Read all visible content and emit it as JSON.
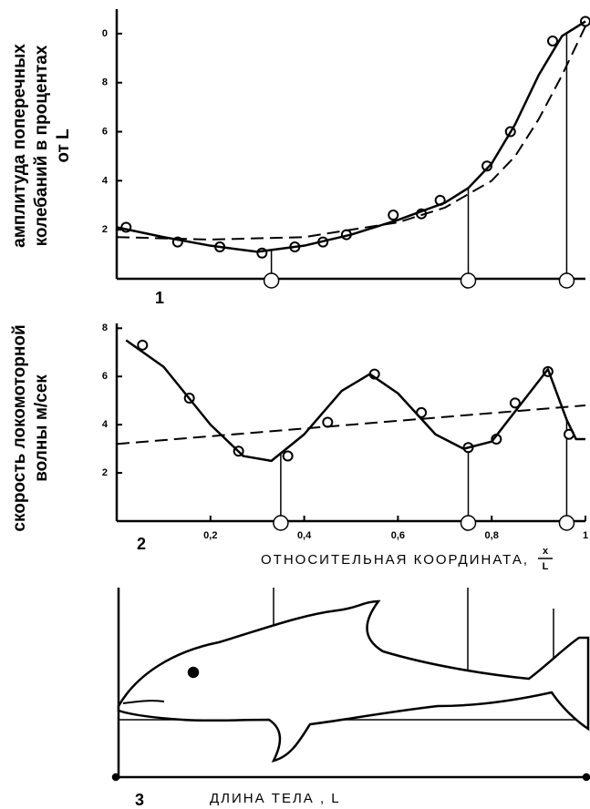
{
  "chart_data": [
    {
      "type": "line",
      "panel_label": "1",
      "ylabel_lines": [
        "амплитуда поперечных",
        "колебаний в процентах",
        "от L"
      ],
      "xlim": [
        0,
        1
      ],
      "ylim": [
        0,
        11
      ],
      "yticks": [
        2,
        4,
        6,
        8,
        {
          "value": 10,
          "label": "0"
        }
      ],
      "markers_x": [
        0.33,
        0.75,
        0.96
      ],
      "series": [
        {
          "style": "points",
          "color": "#000000",
          "x": [
            0.02,
            0.13,
            0.22,
            0.31,
            0.38,
            0.44,
            0.49,
            0.59,
            0.65,
            0.69,
            0.79,
            0.84,
            0.93,
            1.0
          ],
          "values": [
            2.1,
            1.5,
            1.3,
            1.05,
            1.3,
            1.5,
            1.8,
            2.6,
            2.65,
            3.2,
            4.6,
            6.0,
            9.7,
            10.5
          ]
        },
        {
          "style": "solid",
          "color": "#000000",
          "x": [
            0,
            0.1,
            0.2,
            0.3,
            0.4,
            0.5,
            0.6,
            0.7,
            0.75,
            0.8,
            0.85,
            0.9,
            0.95,
            1.0
          ],
          "values": [
            2.1,
            1.7,
            1.35,
            1.1,
            1.35,
            1.8,
            2.4,
            3.1,
            3.7,
            4.7,
            6.3,
            8.3,
            9.9,
            10.5
          ]
        },
        {
          "style": "dashed",
          "color": "#000000",
          "x": [
            0,
            0.2,
            0.4,
            0.6,
            0.7,
            0.8,
            0.85,
            0.9,
            0.95,
            1.0
          ],
          "values": [
            1.7,
            1.6,
            1.7,
            2.3,
            2.9,
            4.0,
            5.0,
            6.5,
            8.3,
            10.3
          ]
        }
      ]
    },
    {
      "type": "line",
      "panel_label": "2",
      "ylabel_lines": [
        "скорость локомоторной",
        "волны м/сек"
      ],
      "xlabel": "ОТНОСИТЕЛЬНАЯ КООРДИНАТА,",
      "xlabel_fraction": [
        "x",
        "L"
      ],
      "xlim": [
        0,
        1
      ],
      "ylim": [
        0,
        8.2
      ],
      "xticks": [
        {
          "value": 0.2,
          "label": "0,2"
        },
        {
          "value": 0.4,
          "label": "0,4"
        },
        {
          "value": 0.6,
          "label": "0,6"
        },
        {
          "value": 0.8,
          "label": "0,8"
        },
        1
      ],
      "yticks": [
        2,
        4,
        6,
        8
      ],
      "markers_x": [
        0.35,
        0.75,
        0.96
      ],
      "series": [
        {
          "style": "points",
          "color": "#000000",
          "x": [
            0.055,
            0.155,
            0.26,
            0.365,
            0.45,
            0.55,
            0.65,
            0.75,
            0.81,
            0.85,
            0.92,
            0.965
          ],
          "values": [
            7.3,
            5.1,
            2.9,
            2.7,
            4.1,
            6.1,
            4.5,
            3.05,
            3.4,
            4.9,
            6.2,
            3.6
          ]
        },
        {
          "style": "solid",
          "color": "#000000",
          "x": [
            0.02,
            0.1,
            0.2,
            0.27,
            0.33,
            0.4,
            0.48,
            0.54,
            0.6,
            0.68,
            0.74,
            0.8,
            0.86,
            0.92,
            0.96,
            0.98,
            1.0
          ],
          "values": [
            7.5,
            6.4,
            4.0,
            2.7,
            2.5,
            3.6,
            5.4,
            6.1,
            5.3,
            3.6,
            3.0,
            3.3,
            4.8,
            6.3,
            4.2,
            3.4,
            3.4
          ]
        },
        {
          "style": "dashed",
          "color": "#000000",
          "x": [
            0,
            1
          ],
          "values": [
            3.2,
            4.8
          ]
        }
      ]
    }
  ],
  "body_panel": {
    "label": "3",
    "caption": "ДЛИНА ТЕЛА , L"
  }
}
